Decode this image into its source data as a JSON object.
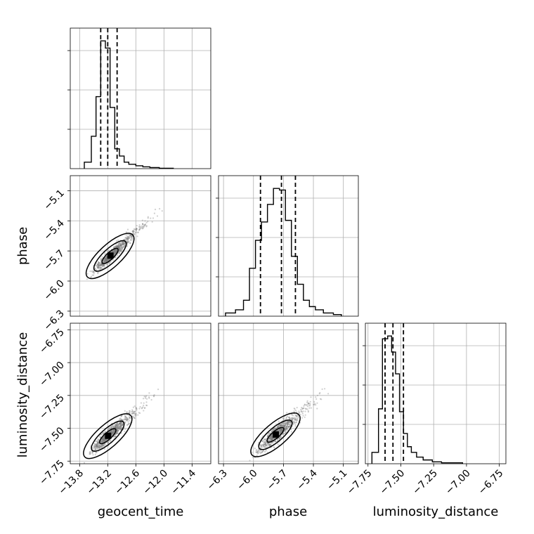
{
  "chart_data": {
    "type": "corner",
    "parameters": [
      "geocent_time",
      "phase",
      "luminosity_distance"
    ],
    "axes": {
      "geocent_time": {
        "label": "geocent_time",
        "range": [
          -14.0,
          -11.0
        ],
        "ticks": [
          -13.8,
          -13.2,
          -12.6,
          -12.0,
          -11.4
        ],
        "tick_labels": [
          "−13.8",
          "−13.2",
          "−12.6",
          "−12.0",
          "−11.4"
        ]
      },
      "phase": {
        "label": "phase",
        "range": [
          -6.35,
          -4.95
        ],
        "ticks": [
          -6.3,
          -6.0,
          -5.7,
          -5.4,
          -5.1
        ],
        "tick_labels": [
          "−6.3",
          "−6.0",
          "−5.7",
          "−5.4",
          "−5.1"
        ]
      },
      "luminosity_distance": {
        "label": "luminosity_distance",
        "range": [
          -7.77,
          -6.7
        ],
        "ticks": [
          -7.75,
          -7.5,
          -7.25,
          -7.0,
          -6.75
        ],
        "tick_labels": [
          "−7.75",
          "−7.50",
          "−7.25",
          "−7.00",
          "−6.75"
        ]
      }
    },
    "histograms": {
      "geocent_time": {
        "bin_edges": [
          -13.7,
          -13.55,
          -13.45,
          -13.35,
          -13.25,
          -13.15,
          -13.05,
          -12.95,
          -12.85,
          -12.75,
          -12.6,
          -12.45,
          -12.3,
          -12.1,
          -11.8
        ],
        "counts": [
          18,
          90,
          200,
          355,
          335,
          170,
          55,
          35,
          18,
          12,
          8,
          5,
          3,
          1
        ],
        "quantiles": [
          -13.35,
          -13.2,
          -13.0
        ]
      },
      "phase": {
        "bin_edges": [
          -6.28,
          -6.18,
          -6.1,
          -6.04,
          -5.98,
          -5.92,
          -5.86,
          -5.8,
          -5.74,
          -5.68,
          -5.62,
          -5.56,
          -5.5,
          -5.44,
          -5.38,
          -5.3,
          -5.2,
          -5.12
        ],
        "counts": [
          4,
          8,
          20,
          60,
          95,
          118,
          140,
          160,
          158,
          120,
          75,
          40,
          20,
          12,
          8,
          4,
          2
        ],
        "quantiles": [
          -5.93,
          -5.72,
          -5.58
        ]
      },
      "luminosity_distance": {
        "bin_edges": [
          -7.72,
          -7.67,
          -7.64,
          -7.6,
          -7.57,
          -7.54,
          -7.51,
          -7.48,
          -7.45,
          -7.42,
          -7.38,
          -7.33,
          -7.26,
          -7.19,
          -7.12,
          -7.03
        ],
        "counts": [
          12,
          58,
          132,
          135,
          118,
          95,
          55,
          32,
          18,
          12,
          7,
          4,
          2,
          1,
          1
        ],
        "quantiles": [
          -7.62,
          -7.56,
          -7.48
        ]
      }
    },
    "pairs": [
      {
        "x": "geocent_time",
        "y": "phase",
        "density_center": [
          -13.15,
          -5.75
        ],
        "correlation": 0.93
      },
      {
        "x": "geocent_time",
        "y": "luminosity_distance",
        "density_center": [
          -13.2,
          -7.56
        ],
        "correlation": 0.9
      },
      {
        "x": "phase",
        "y": "luminosity_distance",
        "density_center": [
          -5.78,
          -7.55
        ],
        "correlation": 0.85
      }
    ],
    "grid": true,
    "legend": "none"
  }
}
